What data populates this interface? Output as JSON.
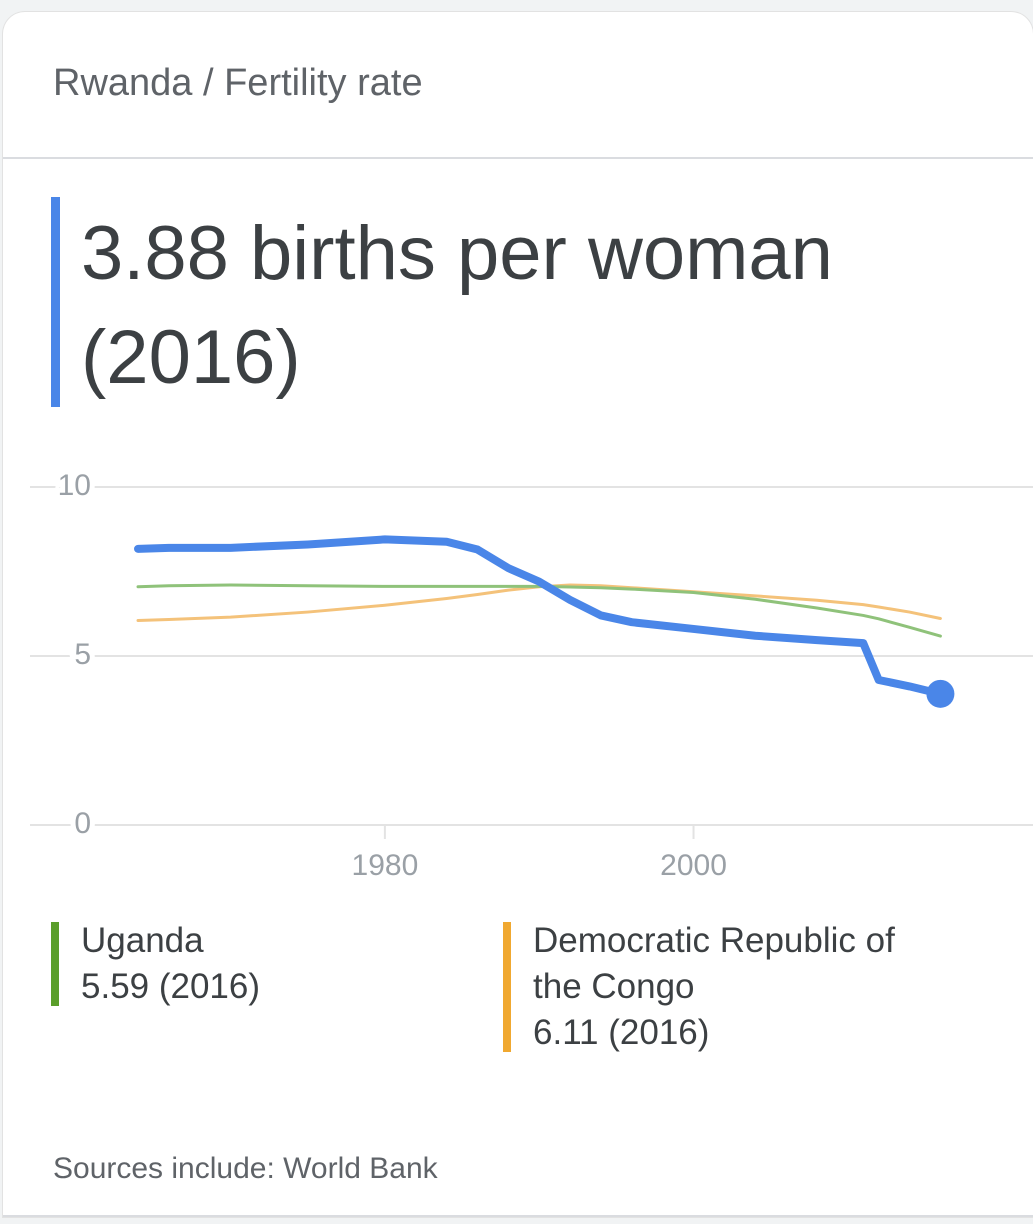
{
  "header": {
    "breadcrumb": "Rwanda / Fertility rate"
  },
  "headline": "3.88 births per woman (2016)",
  "chart_data": {
    "type": "line",
    "x": [
      1964,
      1966,
      1970,
      1975,
      1980,
      1984,
      1986,
      1988,
      1990,
      1992,
      1994,
      1996,
      2000,
      2004,
      2008,
      2011,
      2012,
      2014,
      2016
    ],
    "series": [
      {
        "color": "#4a86e8",
        "values": [
          8.17,
          8.2,
          8.2,
          8.3,
          8.45,
          8.38,
          8.15,
          7.6,
          7.2,
          6.66,
          6.2,
          6.0,
          5.8,
          5.6,
          5.47,
          5.38,
          4.29,
          4.1,
          3.88
        ]
      },
      {
        "name": "Uganda",
        "summary": "5.59 (2016)",
        "color": "#8fc27a",
        "legend_color": "#5a9e2a",
        "values": [
          7.05,
          7.08,
          7.1,
          7.08,
          7.06,
          7.06,
          7.06,
          7.06,
          7.06,
          7.04,
          7.02,
          6.98,
          6.88,
          6.68,
          6.42,
          6.2,
          6.1,
          5.85,
          5.59
        ]
      },
      {
        "name": "Democratic Republic of the Congo",
        "summary": "6.11 (2016)",
        "color": "#f4c27a",
        "legend_color": "#f0a830",
        "values": [
          6.05,
          6.08,
          6.15,
          6.3,
          6.5,
          6.7,
          6.82,
          6.95,
          7.05,
          7.1,
          7.08,
          7.02,
          6.9,
          6.78,
          6.65,
          6.52,
          6.45,
          6.3,
          6.11
        ]
      }
    ],
    "xlim": [
      1957,
      2022
    ],
    "xticks": [
      1980,
      2000
    ],
    "ylim": [
      0,
      10
    ],
    "yticks": [
      0,
      5,
      10
    ],
    "grid": true
  },
  "source": "Sources include: World Bank"
}
